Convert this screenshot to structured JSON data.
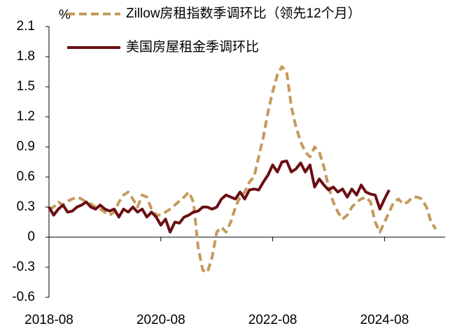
{
  "chart_data": {
    "type": "line",
    "y_unit": "%",
    "categories": [
      "2018-08",
      null,
      null,
      null,
      null,
      null,
      null,
      null,
      null,
      null,
      null,
      null,
      null,
      null,
      null,
      null,
      null,
      null,
      null,
      null,
      null,
      null,
      null,
      null,
      "2020-08",
      null,
      null,
      null,
      null,
      null,
      null,
      null,
      null,
      null,
      null,
      null,
      null,
      null,
      null,
      null,
      null,
      null,
      null,
      null,
      null,
      null,
      null,
      null,
      "2022-08",
      null,
      null,
      null,
      null,
      null,
      null,
      null,
      null,
      null,
      null,
      null,
      null,
      null,
      null,
      null,
      null,
      null,
      null,
      null,
      null,
      null,
      null,
      null,
      "2024-08",
      null,
      null,
      null,
      null,
      null,
      null,
      null,
      null,
      null,
      null,
      null
    ],
    "series": [
      {
        "name": "Zillow房租指数季调环比（领先12个月）",
        "color": "#c49a5c",
        "dash": true,
        "values": [
          0.28,
          0.3,
          0.35,
          0.32,
          0.36,
          0.38,
          0.4,
          0.38,
          0.35,
          0.33,
          0.3,
          0.28,
          0.25,
          0.22,
          0.25,
          0.35,
          0.42,
          0.45,
          0.38,
          0.3,
          0.42,
          0.4,
          0.28,
          0.22,
          0.22,
          0.25,
          0.28,
          0.32,
          0.36,
          0.4,
          0.45,
          0.35,
          -0.1,
          -0.33,
          -0.35,
          -0.2,
          0.05,
          0.1,
          0.05,
          0.15,
          0.3,
          0.4,
          0.45,
          0.55,
          0.6,
          0.8,
          1.0,
          1.25,
          1.45,
          1.62,
          1.7,
          1.65,
          1.3,
          1.1,
          0.95,
          0.85,
          0.8,
          0.9,
          0.85,
          0.7,
          0.5,
          0.35,
          0.25,
          0.18,
          0.22,
          0.3,
          0.35,
          0.38,
          0.4,
          0.35,
          0.15,
          0.05,
          0.15,
          0.25,
          0.35,
          0.38,
          0.33,
          0.35,
          0.4,
          0.4,
          0.38,
          0.3,
          0.15,
          0.08
        ]
      },
      {
        "name": "美国房屋租金季调环比",
        "color": "#6b0f14",
        "dash": false,
        "values": [
          0.3,
          0.22,
          0.28,
          0.32,
          0.25,
          0.26,
          0.3,
          0.32,
          0.35,
          0.3,
          0.28,
          0.32,
          0.28,
          0.26,
          0.28,
          0.2,
          0.28,
          0.25,
          0.3,
          0.25,
          0.28,
          0.2,
          0.25,
          0.2,
          0.12,
          0.18,
          0.05,
          0.15,
          0.14,
          0.2,
          0.22,
          0.25,
          0.26,
          0.3,
          0.3,
          0.28,
          0.3,
          0.38,
          0.42,
          0.4,
          0.38,
          0.45,
          0.38,
          0.47,
          0.48,
          0.47,
          0.55,
          0.62,
          0.72,
          0.65,
          0.75,
          0.76,
          0.65,
          0.68,
          0.74,
          0.65,
          0.72,
          0.5,
          0.58,
          0.52,
          0.47,
          0.5,
          0.45,
          0.48,
          0.4,
          0.48,
          0.42,
          0.52,
          0.45,
          0.43,
          0.42,
          0.28,
          0.38,
          0.47,
          null,
          null,
          null,
          null,
          null,
          null,
          null,
          null,
          null,
          null
        ]
      }
    ],
    "ylim": [
      -0.6,
      2.1
    ],
    "yticks": [
      2.1,
      1.8,
      1.5,
      1.2,
      0.9,
      0.6,
      0.3,
      0,
      -0.3,
      -0.6
    ]
  }
}
